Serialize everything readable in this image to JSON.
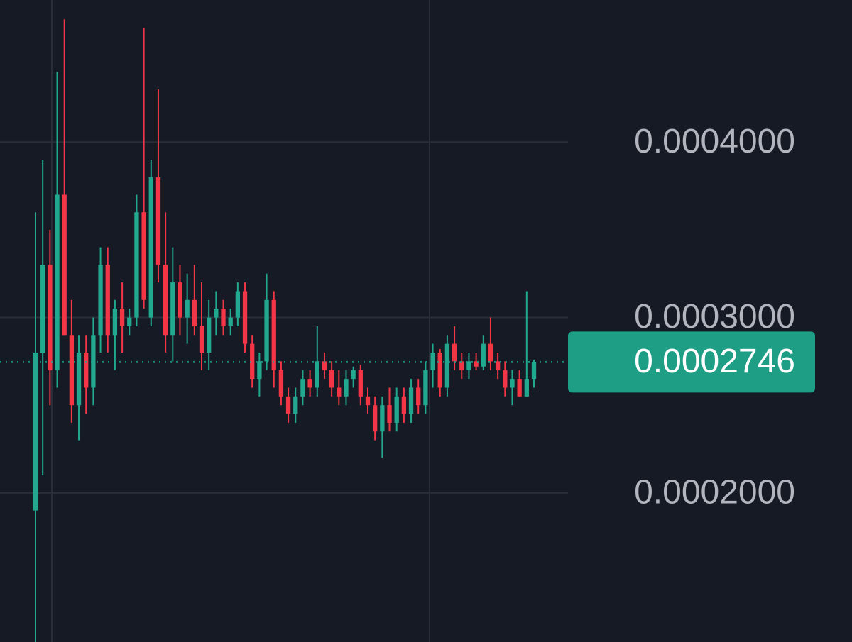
{
  "chart_data": {
    "type": "candlestick",
    "open": [
      0.00019,
      0.00028,
      0.00033,
      0.00027,
      0.00037,
      0.00029,
      0.00025,
      0.00028,
      0.00026,
      0.00029,
      0.00033,
      0.00029,
      0.000305,
      0.000295,
      0.0003,
      0.00036,
      0.0003,
      0.00038,
      0.00033,
      0.00029,
      0.00032,
      0.0003,
      0.00031,
      0.000295,
      0.00028,
      0.0003,
      0.000305,
      0.000295,
      0.0003,
      0.000315,
      0.000285,
      0.000265,
      0.000275,
      0.00031,
      0.00027,
      0.000255,
      0.000245,
      0.000255,
      0.000265,
      0.00026,
      0.000275,
      0.00027,
      0.00026,
      0.000255,
      0.000265,
      0.00027,
      0.000255,
      0.00025,
      0.000235,
      0.00025,
      0.00024,
      0.000255,
      0.000245,
      0.00026,
      0.00025,
      0.00027,
      0.00028,
      0.00026,
      0.000285,
      0.000275,
      0.00027,
      0.000275,
      0.000272,
      0.000285,
      0.000275,
      0.00027,
      0.00026,
      0.000265,
      0.000255,
      0.000265
    ],
    "high": [
      0.00036,
      0.00039,
      0.00035,
      0.00044,
      0.00047,
      0.00031,
      0.00029,
      0.00029,
      0.0003,
      0.00034,
      0.00034,
      0.00031,
      0.00032,
      0.000305,
      0.00037,
      0.000465,
      0.00039,
      0.00043,
      0.00036,
      0.00034,
      0.00033,
      0.000325,
      0.00033,
      0.00032,
      0.00031,
      0.000315,
      0.00031,
      0.000305,
      0.00032,
      0.00032,
      0.00029,
      0.00028,
      0.000325,
      0.000315,
      0.000275,
      0.00026,
      0.00026,
      0.00027,
      0.00027,
      0.000295,
      0.00028,
      0.000275,
      0.00027,
      0.00027,
      0.000272,
      0.000273,
      0.00026,
      0.000255,
      0.000255,
      0.00026,
      0.00026,
      0.00026,
      0.000265,
      0.000265,
      0.000275,
      0.000285,
      0.000282,
      0.00029,
      0.000295,
      0.00028,
      0.00028,
      0.00028,
      0.00029,
      0.0003,
      0.00028,
      0.000275,
      0.00027,
      0.00027,
      0.000315,
      0.000276
    ],
    "low": [
      0.000115,
      0.00021,
      0.00025,
      0.00026,
      0.00029,
      0.00024,
      0.00023,
      0.000245,
      0.00025,
      0.00028,
      0.00028,
      0.00027,
      0.00028,
      0.00029,
      0.000295,
      0.000305,
      0.000295,
      0.00032,
      0.00028,
      0.000275,
      0.00029,
      0.000285,
      0.00029,
      0.00027,
      0.00027,
      0.00029,
      0.00029,
      0.00029,
      0.000295,
      0.00028,
      0.00026,
      0.000255,
      0.00027,
      0.00026,
      0.00025,
      0.00024,
      0.00024,
      0.00025,
      0.000255,
      0.000255,
      0.000265,
      0.000255,
      0.00025,
      0.00025,
      0.00026,
      0.00025,
      0.000245,
      0.00023,
      0.00022,
      0.000235,
      0.000235,
      0.00024,
      0.00024,
      0.000245,
      0.000245,
      0.00026,
      0.000255,
      0.000255,
      0.00027,
      0.000265,
      0.000265,
      0.00027,
      0.00027,
      0.00027,
      0.000265,
      0.000255,
      0.00025,
      0.000255,
      0.000255,
      0.00026
    ],
    "close": [
      0.00028,
      0.00033,
      0.00027,
      0.00037,
      0.00029,
      0.00025,
      0.00028,
      0.00026,
      0.00029,
      0.00033,
      0.00029,
      0.000305,
      0.000295,
      0.0003,
      0.00036,
      0.00031,
      0.00038,
      0.00033,
      0.00029,
      0.00032,
      0.0003,
      0.00031,
      0.000295,
      0.00028,
      0.0003,
      0.000305,
      0.000295,
      0.0003,
      0.000315,
      0.000285,
      0.000265,
      0.000275,
      0.00031,
      0.00027,
      0.000255,
      0.000245,
      0.000255,
      0.000265,
      0.00026,
      0.000275,
      0.00027,
      0.00026,
      0.000255,
      0.000265,
      0.00027,
      0.000255,
      0.00025,
      0.000235,
      0.00025,
      0.00024,
      0.000255,
      0.000245,
      0.00026,
      0.00025,
      0.00027,
      0.00028,
      0.00026,
      0.000285,
      0.000275,
      0.00027,
      0.000275,
      0.000272,
      0.000285,
      0.000275,
      0.00027,
      0.00026,
      0.000265,
      0.000255,
      0.000265,
      0.0002746
    ],
    "up_color": "#22a88f",
    "down_color": "#f23645",
    "ylim": [
      0.000115,
      0.000481
    ],
    "yticks": [
      {
        "value": 0.0002,
        "label": "0.0002000"
      },
      {
        "value": 0.0003,
        "label": "0.0003000"
      },
      {
        "value": 0.0004,
        "label": "0.0004000"
      }
    ],
    "last_price": {
      "value": 0.0002746,
      "label": "0.0002746"
    },
    "grid": true
  }
}
